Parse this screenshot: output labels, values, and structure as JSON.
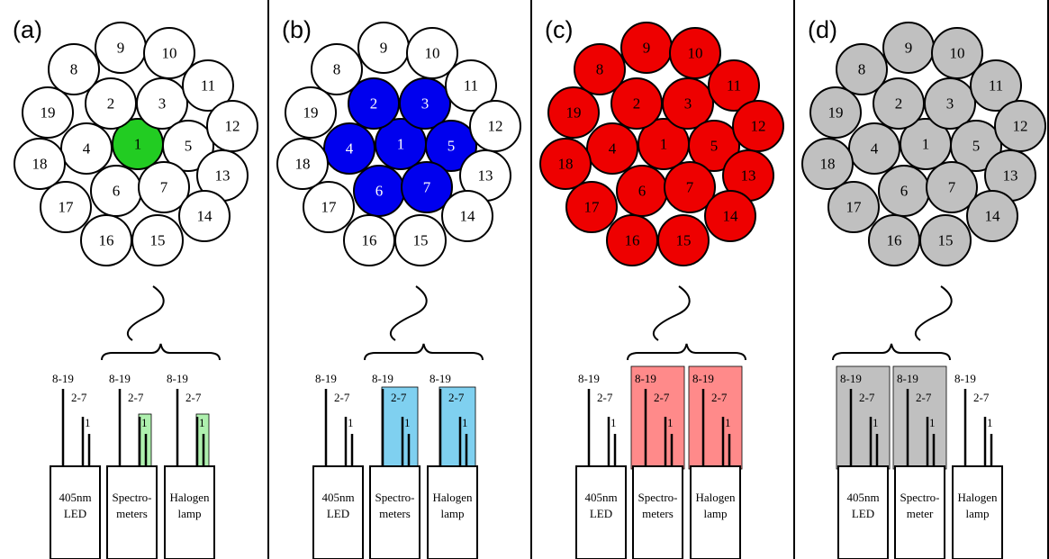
{
  "panels": [
    {
      "label": "(a)",
      "fiber_fill": {
        "1": "#22cc22"
      },
      "default_fill": "#ffffff",
      "text_color_on_fill": "#000000",
      "devices": [
        {
          "name": "405nm LED",
          "lines": [
            "405nm",
            "LED"
          ],
          "highlight": null
        },
        {
          "name": "Spectrometers",
          "lines": [
            "Spectro-",
            "meters"
          ],
          "highlight": "1"
        },
        {
          "name": "Halogen lamp",
          "lines": [
            "Halogen",
            "lamp"
          ],
          "highlight": "1"
        }
      ],
      "highlight_color": "#aef0ae",
      "brace_over": [
        1,
        2
      ]
    },
    {
      "label": "(b)",
      "fiber_fill": {
        "1": "#0000ee",
        "2": "#0000ee",
        "3": "#0000ee",
        "4": "#0000ee",
        "5": "#0000ee",
        "6": "#0000ee",
        "7": "#0000ee"
      },
      "default_fill": "#ffffff",
      "text_color_on_fill": "#ffffff",
      "devices": [
        {
          "name": "405nm LED",
          "lines": [
            "405nm",
            "LED"
          ],
          "highlight": null
        },
        {
          "name": "Spectrometers",
          "lines": [
            "Spectro-",
            "meters"
          ],
          "highlight": "2-7"
        },
        {
          "name": "Halogen lamp",
          "lines": [
            "Halogen",
            "lamp"
          ],
          "highlight": "2-7"
        }
      ],
      "highlight_color": "#7fd0f0",
      "brace_over": [
        1,
        2
      ]
    },
    {
      "label": "(c)",
      "fiber_fill": {
        "all": "#ee0000"
      },
      "default_fill": "#ffffff",
      "text_color_on_fill": "#000000",
      "devices": [
        {
          "name": "405nm LED",
          "lines": [
            "405nm",
            "LED"
          ],
          "highlight": null
        },
        {
          "name": "Spectrometers",
          "lines": [
            "Spectro-",
            "meters"
          ],
          "highlight": "8-19"
        },
        {
          "name": "Halogen lamp",
          "lines": [
            "Halogen",
            "lamp"
          ],
          "highlight": "8-19"
        }
      ],
      "highlight_color": "#ff8a8a",
      "brace_over": [
        1,
        2
      ]
    },
    {
      "label": "(d)",
      "fiber_fill": {
        "all": "#c0c0c0"
      },
      "default_fill": "#ffffff",
      "text_color_on_fill": "#000000",
      "devices": [
        {
          "name": "405nm LED",
          "lines": [
            "405nm",
            "LED"
          ],
          "highlight": "8-19"
        },
        {
          "name": "Spectrometer",
          "lines": [
            "Spectro-",
            "meter"
          ],
          "highlight": "8-19"
        },
        {
          "name": "Halogen lamp",
          "lines": [
            "Halogen",
            "lamp"
          ],
          "highlight": null
        }
      ],
      "highlight_color": "#c0c0c0",
      "brace_over": [
        0,
        1
      ]
    }
  ],
  "fiber_numbers": [
    "1",
    "2",
    "3",
    "4",
    "5",
    "6",
    "7",
    "8",
    "9",
    "10",
    "11",
    "12",
    "13",
    "14",
    "15",
    "16",
    "17",
    "18",
    "19"
  ],
  "bundle_labels": [
    "8-19",
    "2-7",
    "1"
  ]
}
